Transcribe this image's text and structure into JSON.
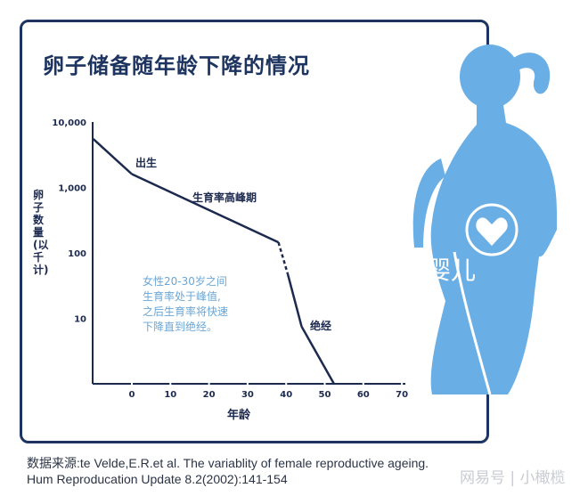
{
  "title": "卵子储备随年龄下降的情况",
  "chart_data": {
    "type": "line",
    "title": "卵子储备随年龄下降的情况",
    "xlabel": "年龄",
    "ylabel": "卵子数量(以千计)",
    "y_scale": "log",
    "xlim": [
      -10,
      70
    ],
    "ylim": [
      1,
      10000
    ],
    "x_ticks": [
      "0",
      "10",
      "20",
      "30",
      "40",
      "50",
      "60",
      "70"
    ],
    "y_ticks": [
      "10,000",
      "1,000",
      "100",
      "10"
    ],
    "series": [
      {
        "x": [
          -10,
          0,
          38,
          40.4,
          44,
          52.4
        ],
        "y": [
          5500,
          1600,
          145,
          48,
          7.5,
          1
        ],
        "dashed_segment": [
          38,
          40.4
        ]
      }
    ],
    "annotations": [
      "出生",
      "生育率高峰期",
      "绝经"
    ],
    "note": [
      "女性20-30岁之间",
      "生育率处于峰值,",
      "之后生育率将快速",
      "下降直到绝经。"
    ],
    "grid": false,
    "line_color": "#1d2a4f",
    "note_color": "#6aa6d6"
  },
  "source": {
    "line1": "数据来源:te Velde,E.R.et al. The variablity of female reproductive ageing.",
    "line2": "Hum Reproducation Update 8.2(2002):141-154"
  },
  "overlay_text": "婴儿",
  "watermark": "网易号 | 小橄榄",
  "colors": {
    "frame": "#1d3461",
    "figure": "#6aaee6"
  }
}
